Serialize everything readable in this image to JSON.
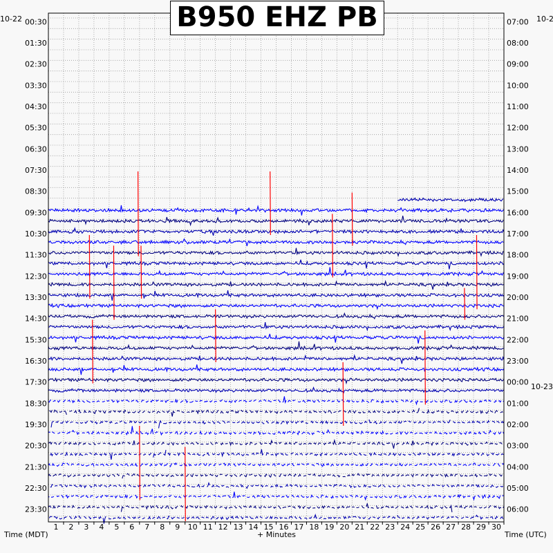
{
  "chart_data": {
    "type": "line",
    "title": "B950 EHZ PB",
    "xlabel": "+ Minutes",
    "left_axis_label": "Time (MDT)",
    "right_axis_label": "Time (UTC)",
    "left_date_label": "10-22",
    "right_date_label_top": "10-2",
    "right_date_label_mid": "10-23",
    "x_ticks": [
      "1",
      "2",
      "3",
      "4",
      "5",
      "6",
      "7",
      "8",
      "9",
      "10",
      "11",
      "12",
      "13",
      "14",
      "15",
      "16",
      "17",
      "18",
      "19",
      "20",
      "21",
      "22",
      "23",
      "24",
      "25",
      "26",
      "27",
      "28",
      "29",
      "30"
    ],
    "left_time_labels": [
      "00:30",
      "01:30",
      "02:30",
      "03:30",
      "04:30",
      "05:30",
      "06:30",
      "07:30",
      "08:30",
      "09:30",
      "10:30",
      "11:30",
      "12:30",
      "13:30",
      "14:30",
      "15:30",
      "16:30",
      "17:30",
      "18:30",
      "19:30",
      "20:30",
      "21:30",
      "22:30",
      "23:30"
    ],
    "right_time_labels": [
      "07:00",
      "08:00",
      "09:00",
      "10:00",
      "11:00",
      "12:00",
      "13:00",
      "14:00",
      "15:00",
      "16:00",
      "17:00",
      "18:00",
      "19:00",
      "20:00",
      "21:00",
      "22:00",
      "23:00",
      "00:00",
      "01:00",
      "02:00",
      "03:00",
      "04:00",
      "05:00",
      "06:00"
    ],
    "xlim": [
      0,
      30
    ],
    "rows_per_hour": 2,
    "first_trace_row": 17,
    "total_rows": 48,
    "trace_colors": [
      "#0000ff",
      "#00007f",
      "#0000b0"
    ],
    "event_color": "#ff0000",
    "grid": true
  }
}
